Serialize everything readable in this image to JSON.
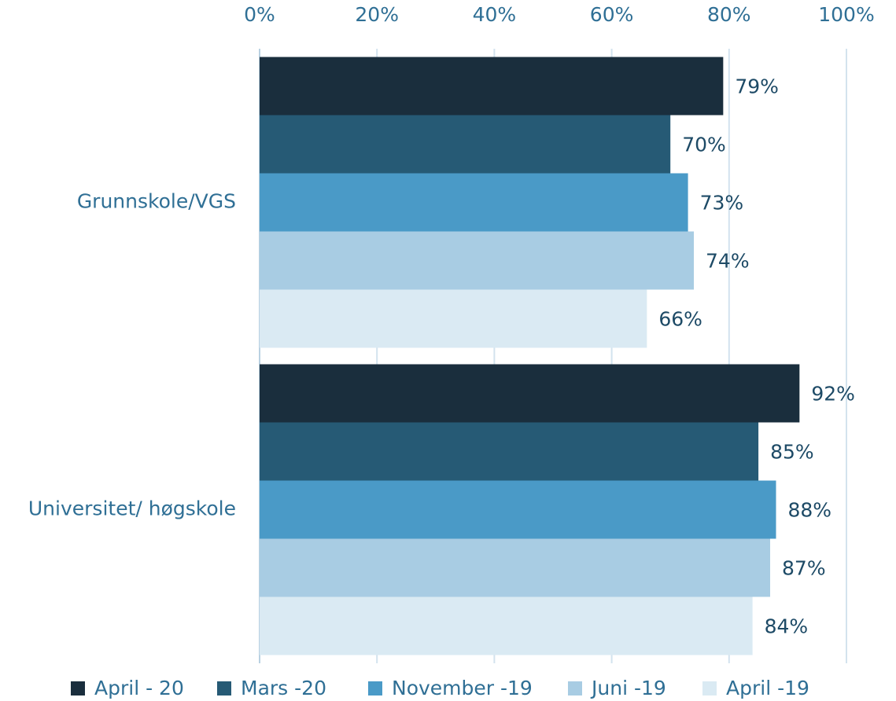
{
  "chart_data": {
    "type": "hbar",
    "categories": [
      "Grunnskole/VGS",
      "Universitet/ høgskole"
    ],
    "series": [
      {
        "name": "April - 20",
        "color": "#1a2e3d",
        "values": [
          79,
          92
        ],
        "value_labels": [
          "79%",
          "92%"
        ]
      },
      {
        "name": "Mars -20",
        "color": "#265a75",
        "values": [
          70,
          85
        ],
        "value_labels": [
          "70%",
          "85%"
        ]
      },
      {
        "name": "November -19",
        "color": "#4a9ac7",
        "values": [
          73,
          88
        ],
        "value_labels": [
          "73%",
          "88%"
        ]
      },
      {
        "name": "Juni -19",
        "color": "#a8cce3",
        "values": [
          74,
          87
        ],
        "value_labels": [
          "74%",
          "87%"
        ]
      },
      {
        "name": "April -19",
        "color": "#daeaf3",
        "values": [
          66,
          84
        ],
        "value_labels": [
          "66%",
          "84%"
        ]
      }
    ],
    "xlim": [
      0,
      100
    ],
    "xticks": [
      {
        "value": 0,
        "label": "0%"
      },
      {
        "value": 20,
        "label": "20%"
      },
      {
        "value": 40,
        "label": "40%"
      },
      {
        "value": 60,
        "label": "60%"
      },
      {
        "value": 80,
        "label": "80%"
      },
      {
        "value": 100,
        "label": "100%"
      }
    ],
    "grid": true,
    "legend": "bottom"
  }
}
